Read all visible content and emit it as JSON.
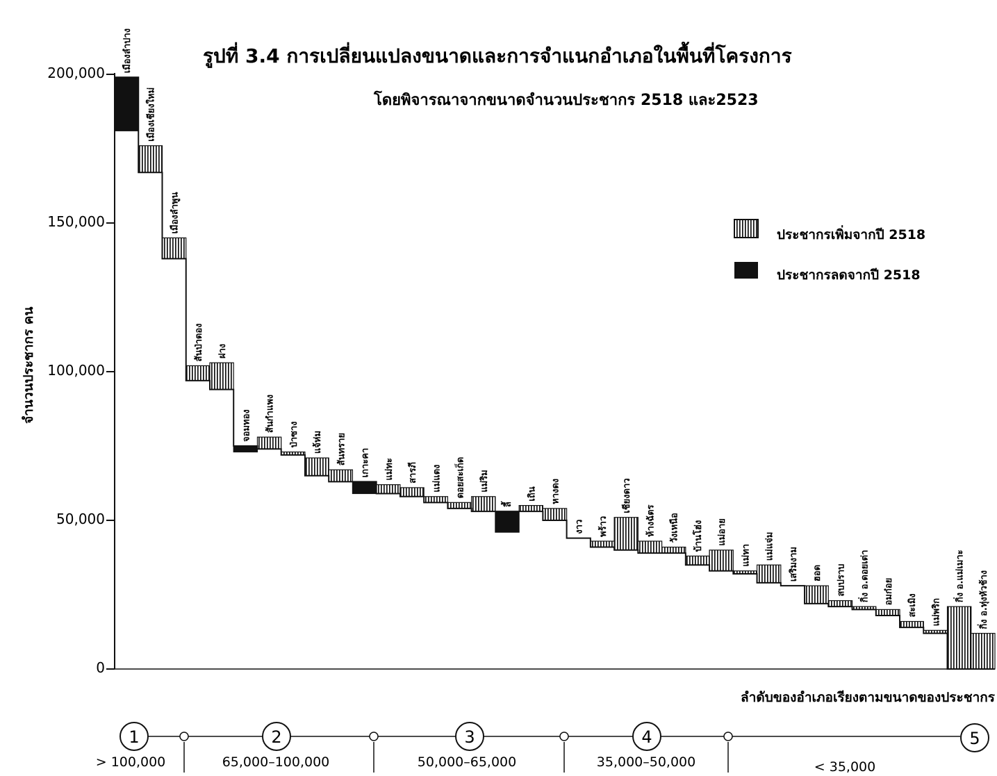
{
  "chart_data": {
    "type": "bar",
    "title": "รูปที่ 3.4 การเปลี่ยนแปลงขนาดและการจำแนกอำเภอในพื้นที่โครงการ",
    "subtitle": "โดยพิจารณาจากขนาดจำนวนประชากร 2518 และ2523",
    "ylabel": "จำนวนประชากร    คน",
    "xlabel": "ลำดับของอำเภอเรียงตามขนาดของประชากร",
    "ylim": [
      0,
      210000
    ],
    "yticks": [
      {
        "value": 0,
        "label": "0"
      },
      {
        "value": 50000,
        "label": "50,000"
      },
      {
        "value": 100000,
        "label": "100,000"
      },
      {
        "value": 150000,
        "label": "150,000"
      },
      {
        "value": 200000,
        "label": "200,000"
      }
    ],
    "legend": {
      "position": "top-right",
      "items": [
        {
          "key": "increase",
          "label": "ประชากรเพิ่มจากปี  2518"
        },
        {
          "key": "decrease",
          "label": "ประชากรลดจากปี   2518"
        }
      ]
    },
    "series_names": [
      "ประชากร 2518",
      "ประชากร 2523"
    ],
    "districts": [
      {
        "name": "เมืองลำปาง",
        "pop_2518": 199000,
        "pop_2523": 181000
      },
      {
        "name": "เมืองเชียงใหม่",
        "pop_2518": 167000,
        "pop_2523": 176000
      },
      {
        "name": "เมืองลำพูน",
        "pop_2518": 138000,
        "pop_2523": 145000
      },
      {
        "name": "สันป่าตอง",
        "pop_2518": 97000,
        "pop_2523": 102000
      },
      {
        "name": "ฝาง",
        "pop_2518": 94000,
        "pop_2523": 103000
      },
      {
        "name": "จอมทอง",
        "pop_2518": 75000,
        "pop_2523": 73000
      },
      {
        "name": "สันกำแพง",
        "pop_2518": 74000,
        "pop_2523": 78000
      },
      {
        "name": "ป่าซาง",
        "pop_2518": 72000,
        "pop_2523": 73000
      },
      {
        "name": "แจ้ห่ม",
        "pop_2518": 65000,
        "pop_2523": 71000
      },
      {
        "name": "สันทราย",
        "pop_2518": 63000,
        "pop_2523": 67000
      },
      {
        "name": "เกาะคา",
        "pop_2518": 63000,
        "pop_2523": 59000
      },
      {
        "name": "แม่ทะ",
        "pop_2518": 59000,
        "pop_2523": 62000
      },
      {
        "name": "สารภี",
        "pop_2518": 58000,
        "pop_2523": 61000
      },
      {
        "name": "แม่แตง",
        "pop_2518": 56000,
        "pop_2523": 58000
      },
      {
        "name": "ดอยสะเก็ด",
        "pop_2518": 54000,
        "pop_2523": 56000
      },
      {
        "name": "แม่ริม",
        "pop_2518": 53000,
        "pop_2523": 58000
      },
      {
        "name": "ลี้",
        "pop_2518": 53000,
        "pop_2523": 46000
      },
      {
        "name": "เถิน",
        "pop_2518": 53000,
        "pop_2523": 55000
      },
      {
        "name": "หางดง",
        "pop_2518": 50000,
        "pop_2523": 54000
      },
      {
        "name": "งาว",
        "pop_2518": 44000,
        "pop_2523": 44000
      },
      {
        "name": "พร้าว",
        "pop_2518": 41000,
        "pop_2523": 43000
      },
      {
        "name": "เชียงดาว",
        "pop_2518": 40000,
        "pop_2523": 51000
      },
      {
        "name": "ห้างฉัตร",
        "pop_2518": 39000,
        "pop_2523": 43000
      },
      {
        "name": "วังเหนือ",
        "pop_2518": 39000,
        "pop_2523": 41000
      },
      {
        "name": "บ้านโฮ่ง",
        "pop_2518": 35000,
        "pop_2523": 38000
      },
      {
        "name": "แม่อาย",
        "pop_2518": 33000,
        "pop_2523": 40000
      },
      {
        "name": "แม่ทา",
        "pop_2518": 32000,
        "pop_2523": 33000
      },
      {
        "name": "แม่แจ่ม",
        "pop_2518": 29000,
        "pop_2523": 35000
      },
      {
        "name": "เสริมงาม",
        "pop_2518": 28000,
        "pop_2523": 28000
      },
      {
        "name": "ฮอด",
        "pop_2518": 22000,
        "pop_2523": 28000
      },
      {
        "name": "สบปราบ",
        "pop_2518": 21000,
        "pop_2523": 23000
      },
      {
        "name": "กิ่ง อ.ดอยเต่า",
        "pop_2518": 20000,
        "pop_2523": 21000
      },
      {
        "name": "อมก๋อย",
        "pop_2518": 18000,
        "pop_2523": 20000
      },
      {
        "name": "สะเมิง",
        "pop_2518": 14000,
        "pop_2523": 16000
      },
      {
        "name": "แม่พริก",
        "pop_2518": 12000,
        "pop_2523": 13000
      },
      {
        "name": "กิ่ง อ.แม่เมาะ",
        "pop_2518": 0,
        "pop_2523": 21000
      },
      {
        "name": "กิ่ง อ.ทุ่งหัวช้าง",
        "pop_2518": 0,
        "pop_2523": 12000
      }
    ],
    "size_classes": [
      {
        "number": "1",
        "range": "> 100,000"
      },
      {
        "number": "2",
        "range": "65,000–100,000"
      },
      {
        "number": "3",
        "range": "50,000–65,000"
      },
      {
        "number": "4",
        "range": "35,000–50,000"
      },
      {
        "number": "5",
        "range": "< 35,000"
      }
    ],
    "colors": {
      "ink": "#111111",
      "increase_fill": "#9a9a9a",
      "decrease_fill": "#111111"
    }
  }
}
